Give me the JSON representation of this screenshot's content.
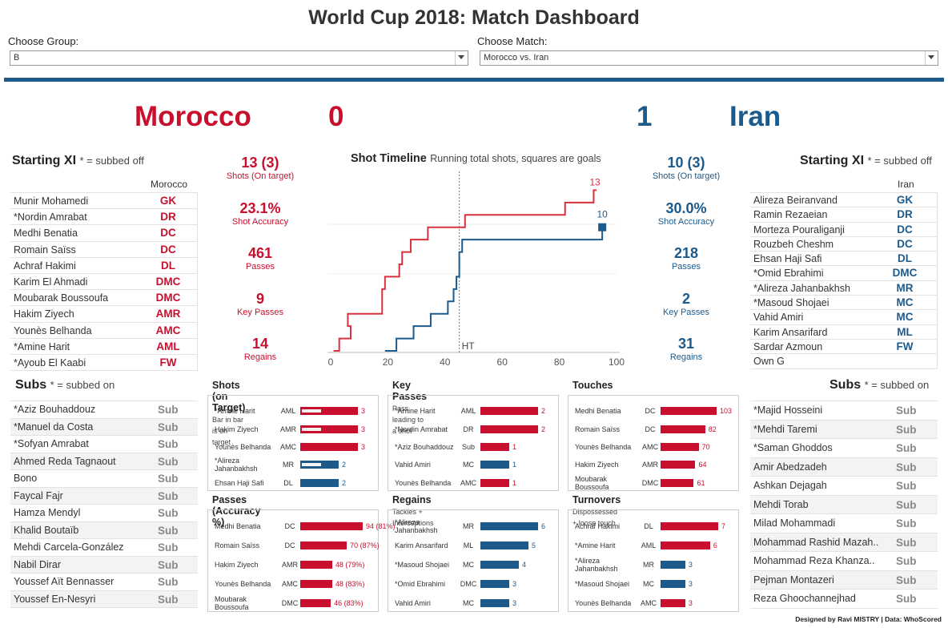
{
  "title": "World Cup 2018: Match Dashboard",
  "filters": {
    "group_label": "Choose Group:",
    "group_value": "B",
    "match_label": "Choose Match:",
    "match_value": "Morocco vs. Iran"
  },
  "score": {
    "home_team": "Morocco",
    "home_goals": "0",
    "away_team": "Iran",
    "away_goals": "1",
    "home_color": "#c8102e",
    "away_color": "#1c5a8c"
  },
  "home": {
    "xi_title": "Starting XI",
    "xi_note": "* = subbed off",
    "col": "Morocco",
    "xi": [
      {
        "name": "Munir Mohamedi",
        "pos": "GK"
      },
      {
        "name": "*Nordin Amrabat",
        "pos": "DR"
      },
      {
        "name": "Medhi Benatia",
        "pos": "DC"
      },
      {
        "name": "Romain Saïss",
        "pos": "DC"
      },
      {
        "name": "Achraf Hakimi",
        "pos": "DL"
      },
      {
        "name": "Karim El Ahmadi",
        "pos": "DMC"
      },
      {
        "name": "Moubarak Boussoufa",
        "pos": "DMC"
      },
      {
        "name": "Hakim Ziyech",
        "pos": "AMR"
      },
      {
        "name": "Younès Belhanda",
        "pos": "AMC"
      },
      {
        "name": "*Amine Harit",
        "pos": "AML"
      },
      {
        "name": "*Ayoub El Kaabi",
        "pos": "FW"
      }
    ],
    "subs_title": "Subs",
    "subs_note": "* = subbed on",
    "subs": [
      {
        "name": "*Aziz Bouhaddouz",
        "pos": "Sub"
      },
      {
        "name": "*Manuel da Costa",
        "pos": "Sub"
      },
      {
        "name": "*Sofyan Amrabat",
        "pos": "Sub"
      },
      {
        "name": "Ahmed Reda Tagnaout",
        "pos": "Sub"
      },
      {
        "name": "Bono",
        "pos": "Sub"
      },
      {
        "name": "Faycal Fajr",
        "pos": "Sub"
      },
      {
        "name": "Hamza Mendyl",
        "pos": "Sub"
      },
      {
        "name": "Khalid Boutaïb",
        "pos": "Sub"
      },
      {
        "name": "Mehdi Carcela-González",
        "pos": "Sub"
      },
      {
        "name": "Nabil Dirar",
        "pos": "Sub"
      },
      {
        "name": "Youssef Aït Bennasser",
        "pos": "Sub"
      },
      {
        "name": "Youssef En-Nesyri",
        "pos": "Sub"
      }
    ],
    "stats": [
      {
        "v": "13 (3)",
        "l": "Shots (On target)"
      },
      {
        "v": "23.1%",
        "l": "Shot Accuracy"
      },
      {
        "v": "461",
        "l": "Passes"
      },
      {
        "v": "9",
        "l": "Key Passes"
      },
      {
        "v": "14",
        "l": "Regains"
      }
    ]
  },
  "away": {
    "xi_title": "Starting XI",
    "xi_note": "* = subbed off",
    "col": "Iran",
    "xi": [
      {
        "name": "Alireza Beiranvand",
        "pos": "GK"
      },
      {
        "name": "Ramin Rezaeian",
        "pos": "DR"
      },
      {
        "name": "Morteza Pouraliganji",
        "pos": "DC"
      },
      {
        "name": "Rouzbeh Cheshm",
        "pos": "DC"
      },
      {
        "name": "Ehsan Haji Safi",
        "pos": "DL"
      },
      {
        "name": "*Omid Ebrahimi",
        "pos": "DMC"
      },
      {
        "name": "*Alireza Jahanbakhsh",
        "pos": "MR"
      },
      {
        "name": "*Masoud Shojaei",
        "pos": "MC"
      },
      {
        "name": "Vahid Amiri",
        "pos": "MC"
      },
      {
        "name": "Karim Ansarifard",
        "pos": "ML"
      },
      {
        "name": "Sardar Azmoun",
        "pos": "FW"
      },
      {
        "name": "Own G",
        "pos": ""
      }
    ],
    "subs_title": "Subs",
    "subs_note": "* = subbed on",
    "subs": [
      {
        "name": "*Majid Hosseini",
        "pos": "Sub"
      },
      {
        "name": "*Mehdi Taremi",
        "pos": "Sub"
      },
      {
        "name": "*Saman Ghoddos",
        "pos": "Sub"
      },
      {
        "name": "Amir Abedzadeh",
        "pos": "Sub"
      },
      {
        "name": "Ashkan Dejagah",
        "pos": "Sub"
      },
      {
        "name": "Mehdi Torab",
        "pos": "Sub"
      },
      {
        "name": "Milad Mohammadi",
        "pos": "Sub"
      },
      {
        "name": "Mohammad Rashid Mazah..",
        "pos": "Sub"
      },
      {
        "name": "Mohammad Reza Khanza..",
        "pos": "Sub"
      },
      {
        "name": "Pejman Montazeri",
        "pos": "Sub"
      },
      {
        "name": "Reza Ghoochannejhad",
        "pos": "Sub"
      }
    ],
    "stats": [
      {
        "v": "10 (3)",
        "l": "Shots (On target)"
      },
      {
        "v": "30.0%",
        "l": "Shot Accuracy"
      },
      {
        "v": "218",
        "l": "Passes"
      },
      {
        "v": "2",
        "l": "Key Passes"
      },
      {
        "v": "31",
        "l": "Regains"
      }
    ]
  },
  "chart_data": {
    "type": "line",
    "title": "Shot Timeline",
    "subtitle": "Running total shots, squares are goals",
    "xlim": [
      0,
      100
    ],
    "xticks": [
      "0",
      "20",
      "40",
      "60",
      "80",
      "100"
    ],
    "ylim": [
      0,
      14
    ],
    "annotation": "HT",
    "halftime_x": 45,
    "series": [
      {
        "name": "Morocco",
        "color": "#d9303d",
        "end_label": "13",
        "steps": [
          [
            1,
            0
          ],
          [
            3,
            1
          ],
          [
            7,
            2
          ],
          [
            6,
            3
          ],
          [
            18,
            4
          ],
          [
            18,
            5
          ],
          [
            19,
            6
          ],
          [
            24,
            7
          ],
          [
            25,
            8
          ],
          [
            28,
            9
          ],
          [
            34,
            10
          ],
          [
            47,
            11
          ],
          [
            82,
            12
          ],
          [
            92,
            13
          ]
        ],
        "end_x": 93,
        "goals": []
      },
      {
        "name": "Iran",
        "color": "#1c5a8c",
        "end_label": "10",
        "steps": [
          [
            19,
            0
          ],
          [
            23,
            1
          ],
          [
            29,
            2
          ],
          [
            35,
            3
          ],
          [
            41,
            4
          ],
          [
            43,
            5
          ],
          [
            44,
            6
          ],
          [
            45,
            7
          ],
          [
            45,
            8
          ],
          [
            46,
            9
          ],
          [
            95,
            10
          ]
        ],
        "end_x": 95,
        "goals": [
          95
        ]
      }
    ]
  },
  "panels": {
    "shots": {
      "title": "Shots (on Target)",
      "note": "Bar in bar is on target",
      "max": 3,
      "rows": [
        {
          "name": "*Amine Harit",
          "pos": "AML",
          "val": 3,
          "inner": 1,
          "label": "3",
          "team": "home"
        },
        {
          "name": "Hakim Ziyech",
          "pos": "AMR",
          "val": 3,
          "inner": 1,
          "label": "3",
          "team": "home"
        },
        {
          "name": "Younès Belhanda",
          "pos": "AMC",
          "val": 3,
          "inner": 0,
          "label": "3",
          "team": "home"
        },
        {
          "name": "*Alireza Jahanbakhsh",
          "pos": "MR",
          "val": 2,
          "inner": 1,
          "label": "2",
          "team": "away"
        },
        {
          "name": "Ehsan Haji Safi",
          "pos": "DL",
          "val": 2,
          "inner": 0,
          "label": "2",
          "team": "away"
        }
      ]
    },
    "keypasses": {
      "title": "Key Passes",
      "note": "Pass leading to a shot",
      "max": 2,
      "rows": [
        {
          "name": "*Amine Harit",
          "pos": "AML",
          "val": 2,
          "label": "2",
          "team": "home"
        },
        {
          "name": "*Nordin Amrabat",
          "pos": "DR",
          "val": 2,
          "label": "2",
          "team": "home"
        },
        {
          "name": "*Aziz Bouhaddouz",
          "pos": "Sub",
          "val": 1,
          "label": "1",
          "team": "home"
        },
        {
          "name": "Vahid Amiri",
          "pos": "MC",
          "val": 1,
          "label": "1",
          "team": "away"
        },
        {
          "name": "Younès Belhanda",
          "pos": "AMC",
          "val": 1,
          "label": "1",
          "team": "home"
        }
      ]
    },
    "touches": {
      "title": "Touches",
      "note": "",
      "max": 103,
      "rows": [
        {
          "name": "Medhi Benatia",
          "pos": "DC",
          "val": 103,
          "label": "103",
          "team": "home"
        },
        {
          "name": "Romain Saïss",
          "pos": "DC",
          "val": 82,
          "label": "82",
          "team": "home"
        },
        {
          "name": "Younès Belhanda",
          "pos": "AMC",
          "val": 70,
          "label": "70",
          "team": "home"
        },
        {
          "name": "Hakim Ziyech",
          "pos": "AMR",
          "val": 64,
          "label": "64",
          "team": "home"
        },
        {
          "name": "Moubarak Boussoufa",
          "pos": "DMC",
          "val": 61,
          "label": "61",
          "team": "home"
        }
      ]
    },
    "passes": {
      "title": "Passes (Accuracy %)",
      "note": "",
      "max": 94,
      "rows": [
        {
          "name": "Medhi Benatia",
          "pos": "DC",
          "val": 94,
          "label": "94 (81%)",
          "team": "home"
        },
        {
          "name": "Romain Saïss",
          "pos": "DC",
          "val": 70,
          "label": "70 (87%)",
          "team": "home"
        },
        {
          "name": "Hakim Ziyech",
          "pos": "AMR",
          "val": 48,
          "label": "48 (79%)",
          "team": "home"
        },
        {
          "name": "Younès Belhanda",
          "pos": "AMC",
          "val": 48,
          "label": "48 (83%)",
          "team": "home"
        },
        {
          "name": "Moubarak Boussoufa",
          "pos": "DMC",
          "val": 46,
          "label": "46 (83%)",
          "team": "home"
        }
      ]
    },
    "regains": {
      "title": "Regains",
      "note": "Tackles + Interceptions",
      "max": 6,
      "rows": [
        {
          "name": "*Alireza Jahanbakhsh",
          "pos": "MR",
          "val": 6,
          "label": "6",
          "team": "away"
        },
        {
          "name": "Karim Ansarifard",
          "pos": "ML",
          "val": 5,
          "label": "5",
          "team": "away"
        },
        {
          "name": "*Masoud Shojaei",
          "pos": "MC",
          "val": 4,
          "label": "4",
          "team": "away"
        },
        {
          "name": "*Omid Ebrahimi",
          "pos": "DMC",
          "val": 3,
          "label": "3",
          "team": "away"
        },
        {
          "name": "Vahid Amiri",
          "pos": "MC",
          "val": 3,
          "label": "3",
          "team": "away"
        }
      ]
    },
    "turnovers": {
      "title": "Turnovers",
      "note": "Dispossessed + loose touch",
      "max": 7,
      "rows": [
        {
          "name": "Achraf Hakimi",
          "pos": "DL",
          "val": 7,
          "label": "7",
          "team": "home"
        },
        {
          "name": "*Amine Harit",
          "pos": "AML",
          "val": 6,
          "label": "6",
          "team": "home"
        },
        {
          "name": "*Alireza Jahanbakhsh",
          "pos": "MR",
          "val": 3,
          "label": "3",
          "team": "away"
        },
        {
          "name": "*Masoud Shojaei",
          "pos": "MC",
          "val": 3,
          "label": "3",
          "team": "away"
        },
        {
          "name": "Younès Belhanda",
          "pos": "AMC",
          "val": 3,
          "label": "3",
          "team": "home"
        }
      ]
    }
  },
  "footer": "Designed by Ravi MISTRY | Data: WhoScored"
}
